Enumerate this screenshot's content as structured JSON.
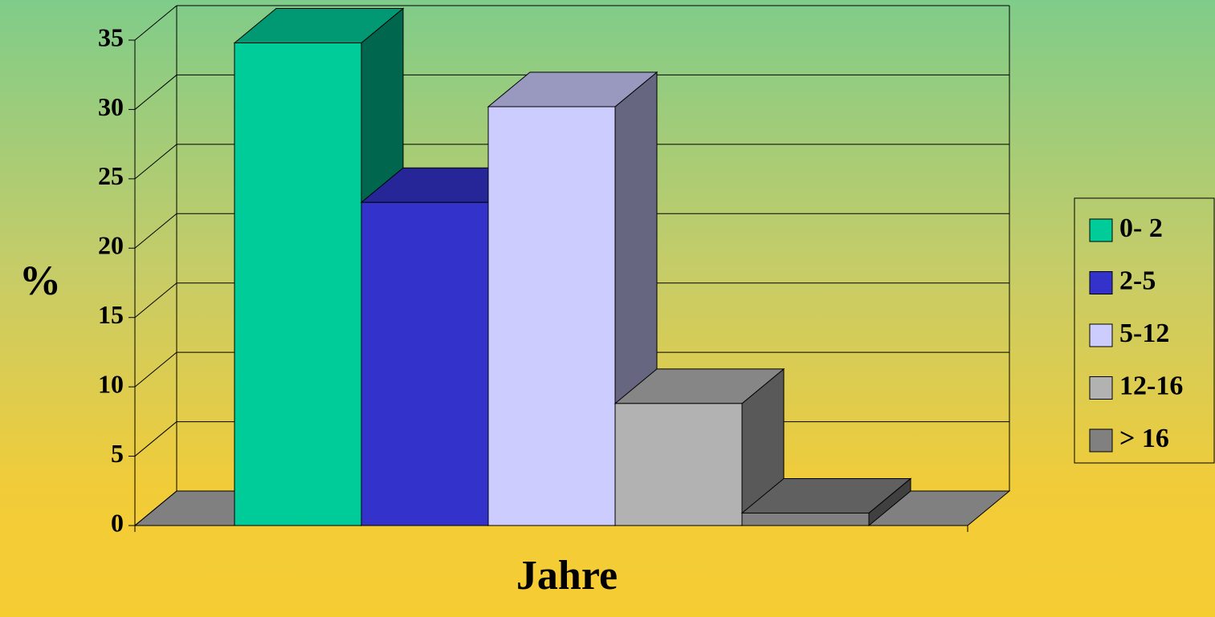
{
  "chart_data": {
    "type": "bar3d",
    "xlabel": "Jahre",
    "ylabel": "%",
    "series": [
      {
        "name": "0- 2",
        "color": "#00cc99",
        "values": [
          34.8
        ]
      },
      {
        "name": "2-5",
        "color": "#3333cc",
        "values": [
          23.3
        ]
      },
      {
        "name": "5-12",
        "color": "#ccccff",
        "values": [
          30.2
        ]
      },
      {
        "name": "12-16",
        "color": "#b2b2b2",
        "values": [
          8.8
        ]
      },
      {
        "name": "> 16",
        "color": "#808080",
        "values": [
          0.9
        ]
      }
    ],
    "ylim": [
      0,
      35
    ],
    "yticks": [
      0,
      5,
      10,
      15,
      20,
      25,
      30,
      35
    ],
    "grid": true,
    "legend": "right"
  }
}
